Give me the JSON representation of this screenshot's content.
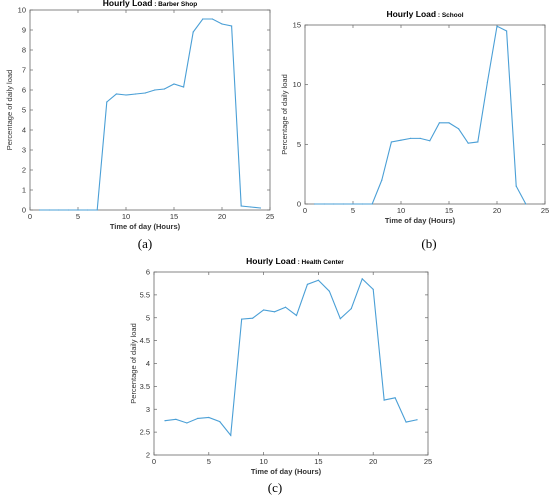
{
  "captions": [
    "(a)",
    "(b)",
    "(c)"
  ],
  "chart_data": [
    {
      "type": "line",
      "title": "Hourly Load",
      "subtitle": ": Barber Shop",
      "xlabel": "Time of day (Hours)",
      "ylabel": "Percentage of daily load",
      "xlim": [
        0,
        25
      ],
      "ylim": [
        0,
        10
      ],
      "xticks": [
        0,
        5,
        10,
        15,
        20,
        25
      ],
      "yticks": [
        0,
        1,
        2,
        3,
        4,
        5,
        6,
        7,
        8,
        9,
        10
      ],
      "grid": false,
      "line_color": "#4a9fd6",
      "x": [
        1,
        2,
        3,
        4,
        5,
        6,
        7,
        8,
        9,
        10,
        11,
        12,
        13,
        14,
        15,
        16,
        17,
        18,
        19,
        20,
        21,
        22,
        23,
        24
      ],
      "y": [
        0,
        0,
        0,
        0,
        0,
        0,
        0,
        5.4,
        5.8,
        5.75,
        5.8,
        5.85,
        6.0,
        6.05,
        6.3,
        6.15,
        8.9,
        9.55,
        9.55,
        9.3,
        9.2,
        0.2,
        0.15,
        0.1
      ]
    },
    {
      "type": "line",
      "title": "Hourly Load",
      "subtitle": ": School",
      "xlabel": "Time of day (Hours)",
      "ylabel": "Percentage of daily load",
      "xlim": [
        0,
        25
      ],
      "ylim": [
        0,
        15
      ],
      "xticks": [
        0,
        5,
        10,
        15,
        20,
        25
      ],
      "yticks": [
        0,
        5,
        10,
        15
      ],
      "grid": false,
      "line_color": "#4a9fd6",
      "x": [
        1,
        2,
        3,
        4,
        5,
        6,
        7,
        8,
        9,
        10,
        11,
        12,
        13,
        14,
        15,
        16,
        17,
        18,
        19,
        20,
        21,
        22,
        23
      ],
      "y": [
        0,
        0,
        0,
        0,
        0,
        0,
        0,
        2.0,
        5.2,
        5.35,
        5.5,
        5.5,
        5.3,
        6.8,
        6.8,
        6.3,
        5.1,
        5.2,
        10.2,
        14.9,
        14.5,
        1.5,
        0
      ]
    },
    {
      "type": "line",
      "title": "Hourly Load",
      "subtitle": ": Health Center",
      "xlabel": "Time of day (Hours)",
      "ylabel": "Percentage of daily load",
      "xlim": [
        0,
        25
      ],
      "ylim": [
        2,
        6
      ],
      "xticks": [
        0,
        5,
        10,
        15,
        20,
        25
      ],
      "yticks": [
        2,
        2.5,
        3,
        3.5,
        4,
        4.5,
        5,
        5.5,
        6
      ],
      "grid": false,
      "line_color": "#4a9fd6",
      "x": [
        1,
        2,
        3,
        4,
        5,
        6,
        7,
        8,
        9,
        10,
        11,
        12,
        13,
        14,
        15,
        16,
        17,
        18,
        19,
        20,
        21,
        22,
        23,
        24
      ],
      "y": [
        2.75,
        2.78,
        2.7,
        2.8,
        2.82,
        2.73,
        2.43,
        4.97,
        4.99,
        5.17,
        5.13,
        5.23,
        5.05,
        5.73,
        5.82,
        5.58,
        4.98,
        5.2,
        5.85,
        5.62,
        3.2,
        3.25,
        2.72,
        2.77
      ]
    }
  ]
}
